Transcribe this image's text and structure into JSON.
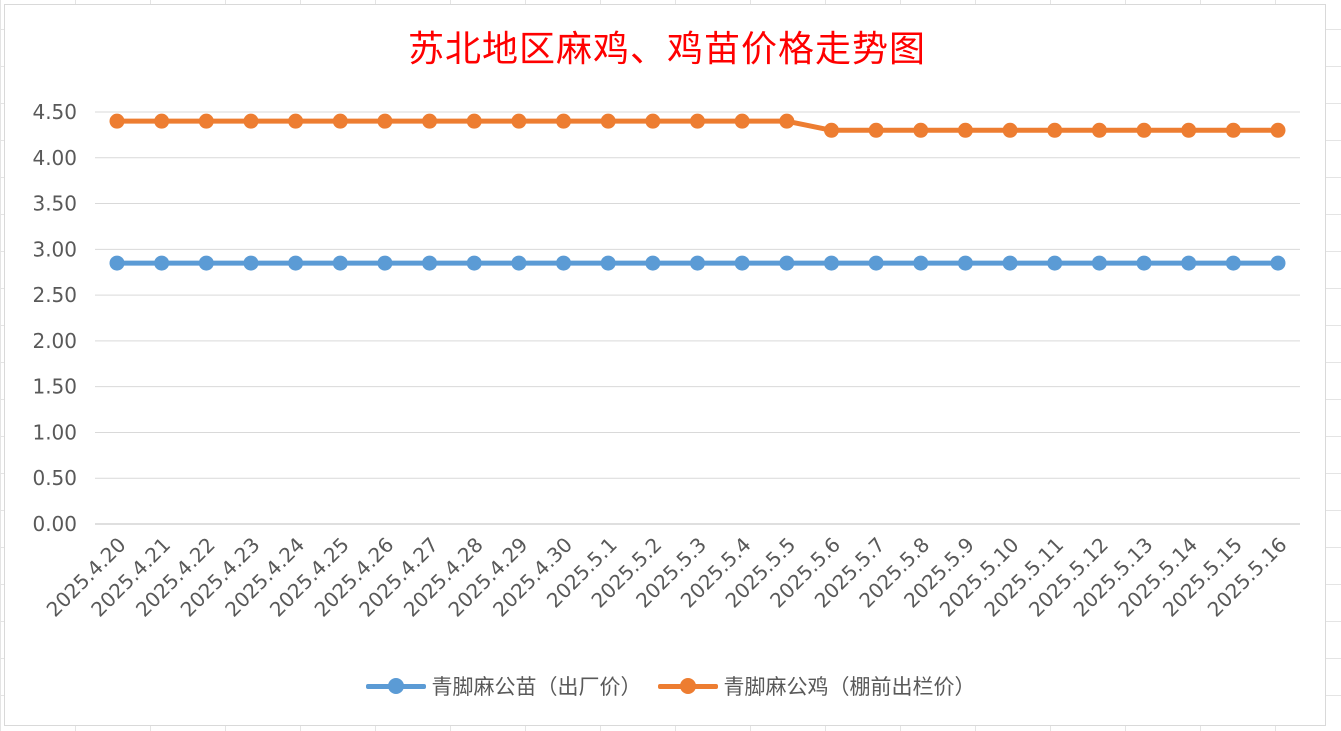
{
  "chart_data": {
    "type": "line",
    "title": "苏北地区麻鸡、鸡苗价格走势图",
    "xlabel": "",
    "ylabel": "",
    "ylim": [
      0,
      4.5
    ],
    "yticks": [
      "0.00",
      "0.50",
      "1.00",
      "1.50",
      "2.00",
      "2.50",
      "3.00",
      "3.50",
      "4.00",
      "4.50"
    ],
    "grid": true,
    "legend_position": "bottom",
    "categories": [
      "2025.4.20",
      "2025.4.21",
      "2025.4.22",
      "2025.4.23",
      "2025.4.24",
      "2025.4.25",
      "2025.4.26",
      "2025.4.27",
      "2025.4.28",
      "2025.4.29",
      "2025.4.30",
      "2025.5.1",
      "2025.5.2",
      "2025.5.3",
      "2025.5.4",
      "2025.5.5",
      "2025.5.6",
      "2025.5.7",
      "2025.5.8",
      "2025.5.9",
      "2025.5.10",
      "2025.5.11",
      "2025.5.12",
      "2025.5.13",
      "2025.5.14",
      "2025.5.15",
      "2025.5.16"
    ],
    "series": [
      {
        "name": "青脚麻公苗（出厂价）",
        "color": "#5b9bd5",
        "values": [
          2.85,
          2.85,
          2.85,
          2.85,
          2.85,
          2.85,
          2.85,
          2.85,
          2.85,
          2.85,
          2.85,
          2.85,
          2.85,
          2.85,
          2.85,
          2.85,
          2.85,
          2.85,
          2.85,
          2.85,
          2.85,
          2.85,
          2.85,
          2.85,
          2.85,
          2.85,
          2.85
        ]
      },
      {
        "name": "青脚麻公鸡（棚前出栏价）",
        "color": "#ed7d31",
        "values": [
          4.4,
          4.4,
          4.4,
          4.4,
          4.4,
          4.4,
          4.4,
          4.4,
          4.4,
          4.4,
          4.4,
          4.4,
          4.4,
          4.4,
          4.4,
          4.4,
          4.3,
          4.3,
          4.3,
          4.3,
          4.3,
          4.3,
          4.3,
          4.3,
          4.3,
          4.3,
          4.3
        ]
      }
    ]
  }
}
